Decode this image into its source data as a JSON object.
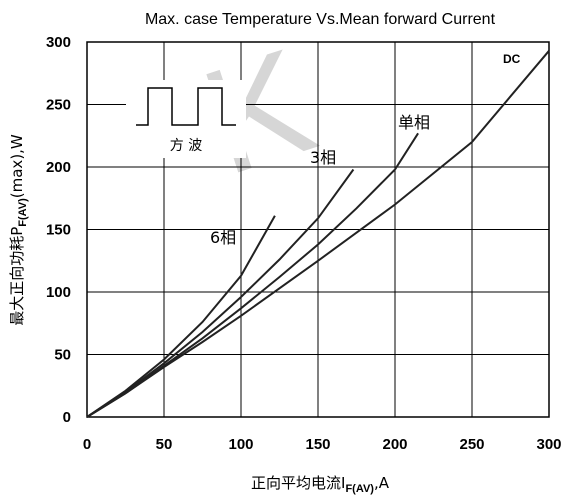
{
  "chart_data": {
    "type": "line",
    "title": "Max. case Temperature Vs.Mean forward Current",
    "xlabel_main": "正向平均电流I",
    "xlabel_sub": "F(AV)",
    "xlabel_unit": ",A",
    "ylabel_main": "最大正向功耗P",
    "ylabel_sub": "F(AV)",
    "ylabel_unit": "(max),W",
    "xlim": [
      0,
      300
    ],
    "ylim": [
      0,
      300
    ],
    "xticks": [
      0,
      50,
      100,
      150,
      200,
      250,
      300
    ],
    "yticks": [
      0,
      50,
      100,
      150,
      200,
      250,
      300
    ],
    "grid": true,
    "series": [
      {
        "name": "6相",
        "x": [
          0,
          25,
          50,
          75,
          100,
          122
        ],
        "y": [
          0,
          21,
          46,
          76,
          113,
          161
        ]
      },
      {
        "name": "3相",
        "x": [
          0,
          25,
          50,
          75,
          100,
          125,
          150,
          173
        ],
        "y": [
          0,
          20,
          43,
          68,
          96,
          126,
          159,
          198
        ]
      },
      {
        "name": "单相",
        "x": [
          0,
          25,
          50,
          75,
          100,
          125,
          150,
          175,
          200,
          215
        ],
        "y": [
          0,
          19,
          41,
          63,
          87,
          112,
          138,
          167,
          198,
          227
        ]
      },
      {
        "name": "DC",
        "x": [
          0,
          25,
          50,
          75,
          100,
          150,
          200,
          250,
          300
        ],
        "y": [
          0,
          19,
          40,
          60,
          81,
          125,
          170,
          220,
          293
        ]
      }
    ],
    "waveform_label": "方 波",
    "watermark": "K"
  }
}
